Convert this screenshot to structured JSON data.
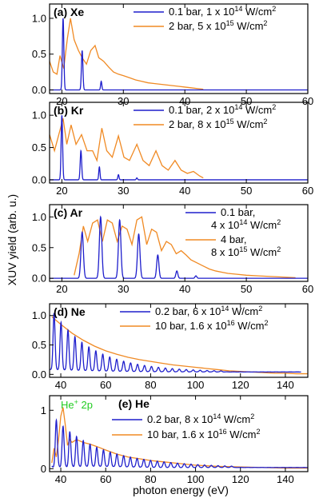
{
  "figure": {
    "ylabel": "XUV yield (arb. u.)",
    "xlabel": "photon energy (eV)"
  },
  "chart_data": [
    {
      "type": "line",
      "panel_label": "(a) Xe",
      "xlim": [
        18,
        60
      ],
      "ylim": [
        -0.05,
        1.2
      ],
      "xticks": [
        20,
        30,
        40,
        50,
        60
      ],
      "yticks": [
        0.0,
        0.5,
        1.0
      ],
      "ytick_labels": [
        "0.0",
        "0.5",
        "1.0"
      ],
      "legend_position": "top-right",
      "series": [
        {
          "name": "0.1 bar, 1 x 10^14 W/cm^2",
          "label_main": "0.1 bar, 1 x 10",
          "label_exp": "14",
          "label_unit": " W/cm",
          "label_unit_exp": "2",
          "color": "#1e1ecc",
          "kind": "peaks",
          "baseline": 0.0,
          "peaks": [
            [
              20.2,
              1.0,
              0.12
            ],
            [
              23.3,
              0.55,
              0.12
            ],
            [
              26.4,
              0.12,
              0.1
            ]
          ]
        },
        {
          "name": "2 bar, 5 x 10^15 W/cm^2",
          "label_main": "2 bar, 5 x 10",
          "label_exp": "15",
          "label_unit": " W/cm",
          "label_unit_exp": "2",
          "color": "#f08a24",
          "kind": "points",
          "points": [
            [
              18,
              0.4
            ],
            [
              18.6,
              0.25
            ],
            [
              19.2,
              0.22
            ],
            [
              19.7,
              0.48
            ],
            [
              20.3,
              0.3
            ],
            [
              20.9,
              0.72
            ],
            [
              21.4,
              1.0
            ],
            [
              22.0,
              0.7
            ],
            [
              22.7,
              0.55
            ],
            [
              23.3,
              0.45
            ],
            [
              24.0,
              0.36
            ],
            [
              24.7,
              0.55
            ],
            [
              25.4,
              0.62
            ],
            [
              26.0,
              0.45
            ],
            [
              26.8,
              0.4
            ],
            [
              27.6,
              0.32
            ],
            [
              28.4,
              0.25
            ],
            [
              29.2,
              0.22
            ],
            [
              30.0,
              0.2
            ],
            [
              31.0,
              0.17
            ],
            [
              32.0,
              0.14
            ],
            [
              33.0,
              0.12
            ],
            [
              34.0,
              0.1
            ],
            [
              35.0,
              0.09
            ],
            [
              36.0,
              0.08
            ],
            [
              37.0,
              0.07
            ],
            [
              38.0,
              0.06
            ],
            [
              39.0,
              0.05
            ],
            [
              40.0,
              0.04
            ],
            [
              41.0,
              0.03
            ],
            [
              42.0,
              0.02
            ],
            [
              43.0,
              0.01
            ]
          ]
        }
      ]
    },
    {
      "type": "line",
      "panel_label": "(b) Kr",
      "xlim": [
        18,
        60
      ],
      "ylim": [
        -0.05,
        1.2
      ],
      "xticks": [
        20,
        30,
        40,
        50,
        60
      ],
      "yticks": [
        0.0,
        0.5,
        1.0
      ],
      "ytick_labels": [
        "0.0",
        "0.5",
        "1.0"
      ],
      "legend_position": "top-right",
      "series": [
        {
          "name": "0.1 bar, 2 x 10^14 W/cm^2",
          "label_main": "0.1 bar, 2 x 10",
          "label_exp": "14",
          "label_unit": " W/cm",
          "label_unit_exp": "2",
          "color": "#1e1ecc",
          "kind": "peaks",
          "baseline": 0.0,
          "peaks": [
            [
              20.0,
              1.0,
              0.12
            ],
            [
              23.1,
              0.45,
              0.12
            ],
            [
              26.1,
              0.2,
              0.1
            ],
            [
              29.2,
              0.08,
              0.1
            ],
            [
              32.2,
              0.03,
              0.1
            ]
          ]
        },
        {
          "name": "2 bar, 8 x 10^15 W/cm^2",
          "label_main": "2 bar, 8 x 10",
          "label_exp": "15",
          "label_unit": " W/cm",
          "label_unit_exp": "2",
          "color": "#f08a24",
          "kind": "points",
          "points": [
            [
              18,
              0.7
            ],
            [
              18.8,
              0.45
            ],
            [
              19.5,
              0.7
            ],
            [
              20.2,
              0.95
            ],
            [
              20.8,
              0.55
            ],
            [
              21.5,
              0.85
            ],
            [
              22.3,
              0.55
            ],
            [
              23.2,
              0.7
            ],
            [
              24.1,
              0.45
            ],
            [
              25.0,
              0.45
            ],
            [
              25.7,
              0.3
            ],
            [
              26.5,
              0.8
            ],
            [
              27.3,
              0.45
            ],
            [
              28.2,
              0.35
            ],
            [
              29.2,
              0.68
            ],
            [
              30.1,
              0.35
            ],
            [
              31.0,
              0.3
            ],
            [
              32.2,
              0.55
            ],
            [
              33.2,
              0.3
            ],
            [
              34.2,
              0.22
            ],
            [
              35.3,
              0.45
            ],
            [
              36.3,
              0.22
            ],
            [
              37.3,
              0.15
            ],
            [
              38.4,
              0.3
            ],
            [
              39.4,
              0.15
            ],
            [
              40.4,
              0.1
            ],
            [
              41.4,
              0.13
            ],
            [
              42.4,
              0.06
            ],
            [
              43.0,
              0.03
            ]
          ]
        }
      ]
    },
    {
      "type": "line",
      "panel_label": "(c) Ar",
      "xlim": [
        18,
        60
      ],
      "ylim": [
        -0.05,
        1.2
      ],
      "xticks": [
        20,
        30,
        40,
        50,
        60
      ],
      "yticks": [
        0.0,
        0.5,
        1.0
      ],
      "ytick_labels": [
        "0.0",
        "0.5",
        "1.0"
      ],
      "legend_position": "top-right",
      "series": [
        {
          "name": "0.1 bar, 4 x 10^14 W/cm^2",
          "label_main": "0.1 bar,",
          "label_line2": "4 x 10",
          "label_exp": "14",
          "label_unit": " W/cm",
          "label_unit_exp": "2",
          "color": "#1e1ecc",
          "kind": "peaks",
          "baseline": 0.0,
          "peaks": [
            [
              23.3,
              0.75,
              0.2
            ],
            [
              26.3,
              1.0,
              0.2
            ],
            [
              29.4,
              0.95,
              0.2
            ],
            [
              32.5,
              0.72,
              0.2
            ],
            [
              35.6,
              0.38,
              0.18
            ],
            [
              38.7,
              0.12,
              0.16
            ],
            [
              41.8,
              0.04,
              0.15
            ]
          ]
        },
        {
          "name": "4 bar, 8 x 10^15 W/cm^2",
          "label_main": "4 bar,",
          "label_line2": "8 x 10",
          "label_exp": "15",
          "label_unit": " W/cm",
          "label_unit_exp": "2",
          "color": "#f08a24",
          "kind": "points",
          "points": [
            [
              22.0,
              0.05
            ],
            [
              22.8,
              0.4
            ],
            [
              23.5,
              0.85
            ],
            [
              24.2,
              0.6
            ],
            [
              25.0,
              0.9
            ],
            [
              25.8,
              0.95
            ],
            [
              26.6,
              0.6
            ],
            [
              27.4,
              0.95
            ],
            [
              28.2,
              0.9
            ],
            [
              29.0,
              0.6
            ],
            [
              29.8,
              0.85
            ],
            [
              30.6,
              0.8
            ],
            [
              31.4,
              0.55
            ],
            [
              32.2,
              0.95
            ],
            [
              33.0,
              1.0
            ],
            [
              33.8,
              0.55
            ],
            [
              34.6,
              0.8
            ],
            [
              35.4,
              0.75
            ],
            [
              36.2,
              0.45
            ],
            [
              37.0,
              0.6
            ],
            [
              37.8,
              0.55
            ],
            [
              38.6,
              0.4
            ],
            [
              39.4,
              0.45
            ],
            [
              40.2,
              0.38
            ],
            [
              41.0,
              0.3
            ],
            [
              42.0,
              0.25
            ],
            [
              43.0,
              0.2
            ],
            [
              44.0,
              0.15
            ],
            [
              45.0,
              0.12
            ],
            [
              46.0,
              0.1
            ],
            [
              47.0,
              0.08
            ],
            [
              48.0,
              0.07
            ],
            [
              50.0,
              0.05
            ],
            [
              52.0,
              0.04
            ],
            [
              54.0,
              0.03
            ],
            [
              56.0,
              0.02
            ],
            [
              58.0,
              0.01
            ]
          ]
        }
      ]
    },
    {
      "type": "line",
      "panel_label": "(d) Ne",
      "xlim": [
        35,
        150
      ],
      "ylim": [
        -0.05,
        1.2
      ],
      "xticks": [
        40,
        60,
        80,
        100,
        120,
        140
      ],
      "yticks": [
        0.0,
        0.5,
        1.0
      ],
      "ytick_labels": [
        "0.0",
        "0.5",
        "1.0"
      ],
      "legend_position": "top-right",
      "series": [
        {
          "name": "0.2 bar, 6 x 10^14 W/cm^2",
          "label_main": "0.2 bar, 6 x 10",
          "label_exp": "14",
          "label_unit": " W/cm",
          "label_unit_exp": "2",
          "color": "#1e1ecc",
          "kind": "peak_train",
          "baseline": 0.04,
          "start": 37.0,
          "spacing": 3.1,
          "end": 112,
          "amp0": 1.0,
          "decay": 0.055,
          "width": 0.45
        },
        {
          "name": "10 bar, 1.6 x 10^16 W/cm^2",
          "label_main": "10 bar, 1.6 x 10",
          "label_exp": "16",
          "label_unit": " W/cm",
          "label_unit_exp": "2",
          "color": "#f08a24",
          "kind": "points",
          "points": [
            [
              36,
              0.98
            ],
            [
              40,
              0.85
            ],
            [
              45,
              0.7
            ],
            [
              50,
              0.58
            ],
            [
              55,
              0.48
            ],
            [
              60,
              0.4
            ],
            [
              65,
              0.34
            ],
            [
              70,
              0.29
            ],
            [
              75,
              0.25
            ],
            [
              80,
              0.22
            ],
            [
              85,
              0.19
            ],
            [
              90,
              0.16
            ],
            [
              95,
              0.14
            ],
            [
              100,
              0.12
            ],
            [
              105,
              0.1
            ],
            [
              110,
              0.08
            ],
            [
              115,
              0.06
            ],
            [
              120,
              0.05
            ],
            [
              125,
              0.04
            ],
            [
              130,
              0.03
            ],
            [
              135,
              0.02
            ],
            [
              140,
              0.02
            ],
            [
              145,
              0.01
            ],
            [
              150,
              0.01
            ]
          ]
        }
      ]
    },
    {
      "type": "line",
      "panel_label": "(e) He",
      "annotation": "He",
      "annotation_sup": "+",
      "annotation_tail": " 2p",
      "annotation_color": "#22cc22",
      "xlim": [
        35,
        150
      ],
      "ylim": [
        -0.05,
        1.25
      ],
      "xticks": [
        40,
        60,
        80,
        100,
        120,
        140
      ],
      "yticks": [
        0,
        1
      ],
      "ytick_labels": [
        "0",
        "1"
      ],
      "legend_position": "middle-right",
      "series": [
        {
          "name": "0.2 bar, 8 x 10^14 W/cm^2",
          "label_main": "0.2 bar, 8 x 10",
          "label_exp": "14",
          "label_unit": " W/cm",
          "label_unit_exp": "2",
          "color": "#1e1ecc",
          "kind": "peak_train",
          "baseline": 0.02,
          "start": 38.0,
          "spacing": 3.0,
          "end": 118,
          "amp0": 0.78,
          "decay": 0.045,
          "width": 0.45
        },
        {
          "name": "10 bar, 1.6 x 10^16 W/cm^2",
          "label_main": "10 bar, 1.6 x 10",
          "label_exp": "16",
          "label_unit": " W/cm",
          "label_unit_exp": "2",
          "color": "#f08a24",
          "kind": "points",
          "points": [
            [
              36,
              0.1
            ],
            [
              37,
              0.35
            ],
            [
              38,
              0.2
            ],
            [
              39,
              0.5
            ],
            [
              40,
              0.9
            ],
            [
              41,
              1.05
            ],
            [
              42,
              0.75
            ],
            [
              43,
              0.4
            ],
            [
              44,
              0.5
            ],
            [
              45,
              0.45
            ],
            [
              47,
              0.5
            ],
            [
              50,
              0.45
            ],
            [
              53,
              0.42
            ],
            [
              56,
              0.38
            ],
            [
              60,
              0.32
            ],
            [
              65,
              0.25
            ],
            [
              70,
              0.2
            ],
            [
              75,
              0.17
            ],
            [
              80,
              0.14
            ],
            [
              85,
              0.12
            ],
            [
              90,
              0.1
            ],
            [
              95,
              0.08
            ],
            [
              100,
              0.06
            ],
            [
              110,
              0.04
            ],
            [
              120,
              0.03
            ],
            [
              130,
              0.02
            ],
            [
              140,
              0.01
            ],
            [
              150,
              0.01
            ]
          ]
        }
      ]
    }
  ]
}
